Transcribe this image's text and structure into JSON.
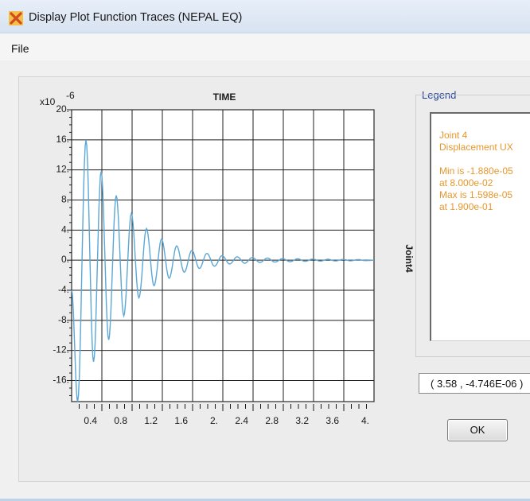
{
  "window": {
    "title": "Display Plot Function Traces  (NEPAL EQ)",
    "icon": "close-x-icon",
    "accent_color": "#f0a020"
  },
  "menu": {
    "file_label": "File"
  },
  "chart_data": {
    "type": "line",
    "title": "TIME",
    "ylabel": "Joint4",
    "y_multiplier_label": "x10",
    "y_multiplier_exponent": "-6",
    "xlim": [
      0.0,
      4.0
    ],
    "ylim": [
      -18.8,
      20.0
    ],
    "x_ticks": [
      "0.4",
      "0.8",
      "1.2",
      "1.6",
      "2.",
      "2.4",
      "2.8",
      "3.2",
      "3.6",
      "4."
    ],
    "y_ticks": [
      "20.",
      "16.",
      "12.",
      "8.",
      "4.",
      "0.",
      "-4.",
      "-8.",
      "-12.",
      "-16."
    ],
    "grid": true,
    "series": [
      {
        "name": "Joint 4 Displacement UX",
        "color": "#5ba7d6",
        "x": [
          0.0,
          0.08,
          0.19,
          0.29,
          0.39,
          0.49,
          0.59,
          0.69,
          0.79,
          0.89,
          0.99,
          1.09,
          1.19,
          1.29,
          1.39,
          1.49,
          1.59,
          1.69,
          1.79,
          1.89,
          1.99,
          2.09,
          2.19,
          2.29,
          2.39,
          2.49,
          2.59,
          2.69,
          2.79,
          2.89,
          2.99,
          3.09,
          3.19,
          3.29,
          3.39,
          3.49,
          3.59,
          3.69,
          3.79,
          3.89,
          4.0
        ],
        "y": [
          -4.0,
          -18.8,
          15.98,
          -13.5,
          11.8,
          -10.6,
          8.6,
          -7.4,
          6.2,
          -5.0,
          4.2,
          -3.4,
          2.8,
          -2.4,
          1.9,
          -1.6,
          1.3,
          -1.1,
          0.9,
          -0.8,
          0.6,
          -0.5,
          0.45,
          -0.4,
          0.35,
          -0.3,
          0.28,
          -0.25,
          0.2,
          -0.2,
          0.18,
          -0.15,
          0.15,
          -0.12,
          0.12,
          -0.1,
          0.1,
          -0.08,
          0.08,
          -0.06,
          0.0
        ]
      }
    ]
  },
  "legend": {
    "label": "Legend",
    "lines": [
      "Joint 4",
      "Displacement  UX",
      "",
      "Min is -1.880e-05",
      "at 8.000e-02",
      "Max is 1.598e-05",
      "at 1.900e-01"
    ],
    "text_color": "#e8972c"
  },
  "cursor_readout": "( 3.58 , -4.746E-06 )",
  "ok_label": "OK"
}
